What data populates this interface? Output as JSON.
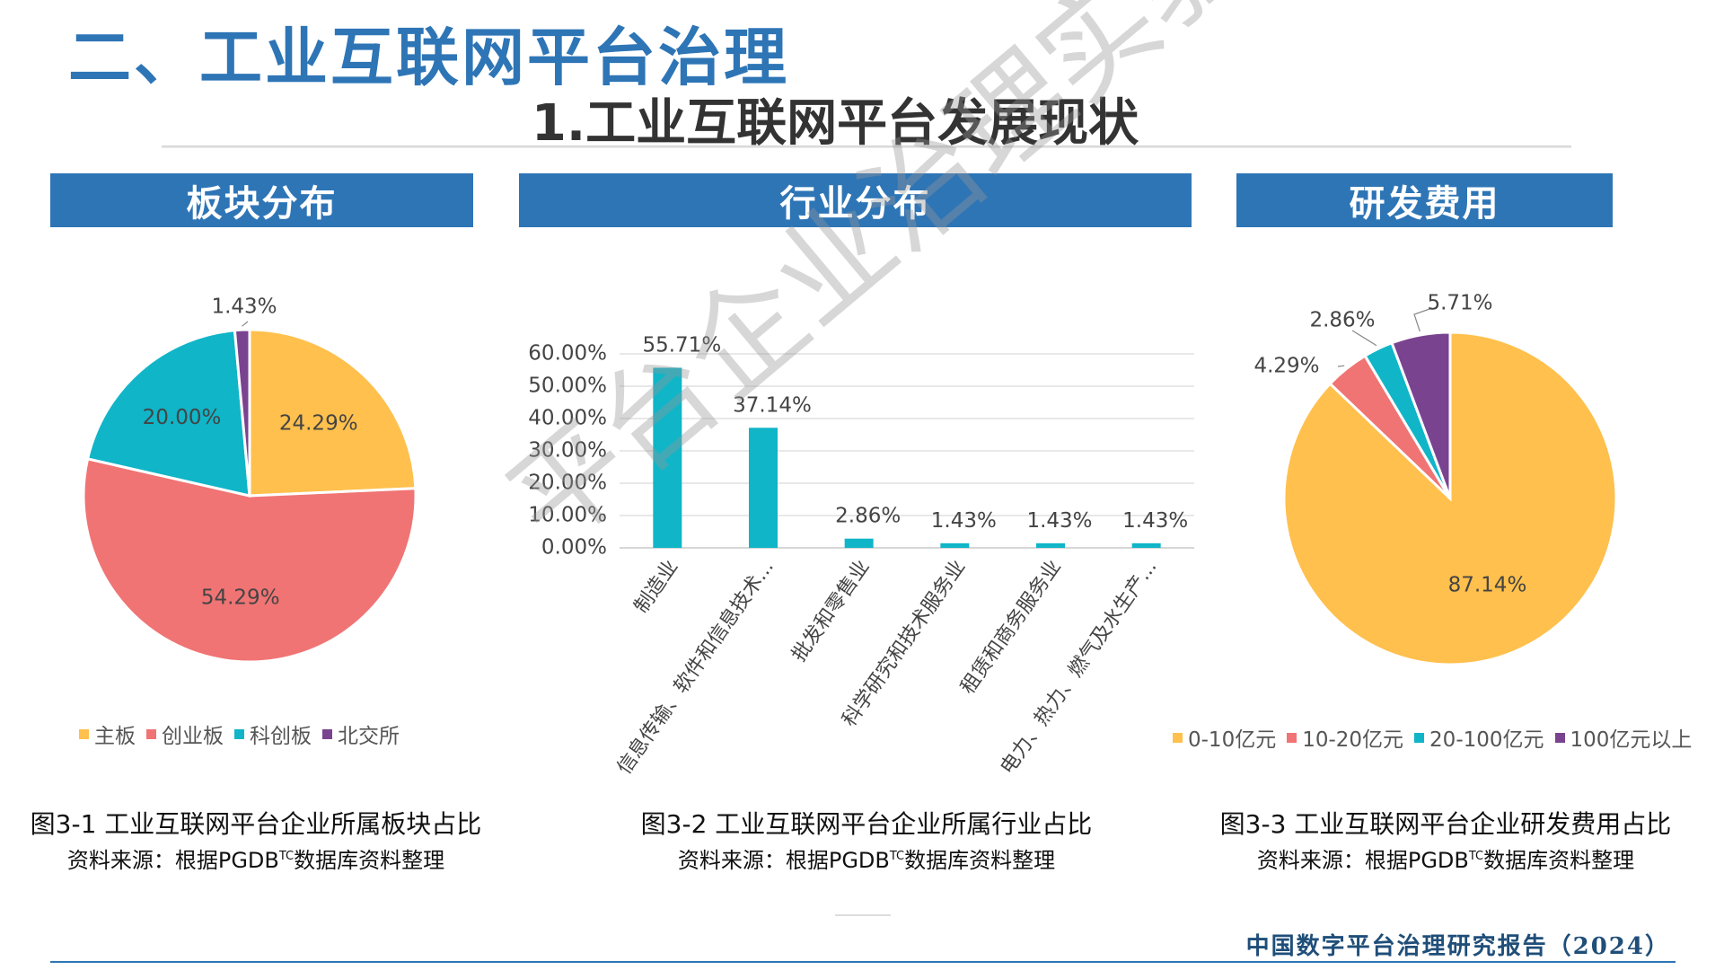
{
  "header": {
    "title": "二、工业互联网平台治理",
    "subtitle": "1.工业互联网平台发展现状"
  },
  "panels": [
    {
      "banner": "板块分布",
      "caption": "图3-1  工业互联网平台企业所属板块占比",
      "source_prefix": "资料来源：根据PGDB",
      "source_sup": "TC",
      "source_suffix": "数据库资料整理"
    },
    {
      "banner": "行业分布",
      "caption": "图3-2  工业互联网平台企业所属行业占比",
      "source_prefix": "资料来源：根据PGDB",
      "source_sup": "TC",
      "source_suffix": "数据库资料整理"
    },
    {
      "banner": "研发费用",
      "caption": "图3-3  工业互联网平台企业研发费用占比",
      "source_prefix": "资料来源：根据PGDB",
      "source_sup": "TC",
      "source_suffix": "数据库资料整理"
    }
  ],
  "chart_data": [
    {
      "type": "pie",
      "categories": [
        "主板",
        "创业板",
        "科创板",
        "北交所"
      ],
      "values": [
        24.29,
        54.29,
        20.0,
        1.43
      ],
      "labels": [
        "24.29%",
        "54.29%",
        "20.00%",
        "1.43%"
      ],
      "colors": [
        "#FFC04D",
        "#F07474",
        "#10B5C8",
        "#7A4390"
      ],
      "legend": "bottom"
    },
    {
      "type": "bar",
      "categories": [
        "制造业",
        "信息传输、软件和信息技术...",
        "批发和零售业",
        "科学研究和技术服务业",
        "租赁和商务服务业",
        "电力、热力、燃气及水生产..."
      ],
      "values": [
        55.71,
        37.14,
        2.86,
        1.43,
        1.43,
        1.43
      ],
      "labels": [
        "55.71%",
        "37.14%",
        "2.86%",
        "1.43%",
        "1.43%",
        "1.43%"
      ],
      "yticks": [
        "0.00%",
        "10.00%",
        "20.00%",
        "30.00%",
        "40.00%",
        "50.00%",
        "60.00%"
      ],
      "ylim": [
        0,
        60
      ],
      "color": "#10B5C8",
      "grid": true
    },
    {
      "type": "pie",
      "categories": [
        "0-10亿元",
        "10-20亿元",
        "20-100亿元",
        "100亿元以上"
      ],
      "values": [
        87.14,
        4.29,
        2.86,
        5.71
      ],
      "labels": [
        "87.14%",
        "4.29%",
        "2.86%",
        "5.71%"
      ],
      "colors": [
        "#FFC04D",
        "#F07474",
        "#10B5C8",
        "#7A4390"
      ],
      "legend": "bottom"
    }
  ],
  "watermark": "平台企业治理实验室",
  "footer": "中国数字平台治理研究报告（2024）"
}
